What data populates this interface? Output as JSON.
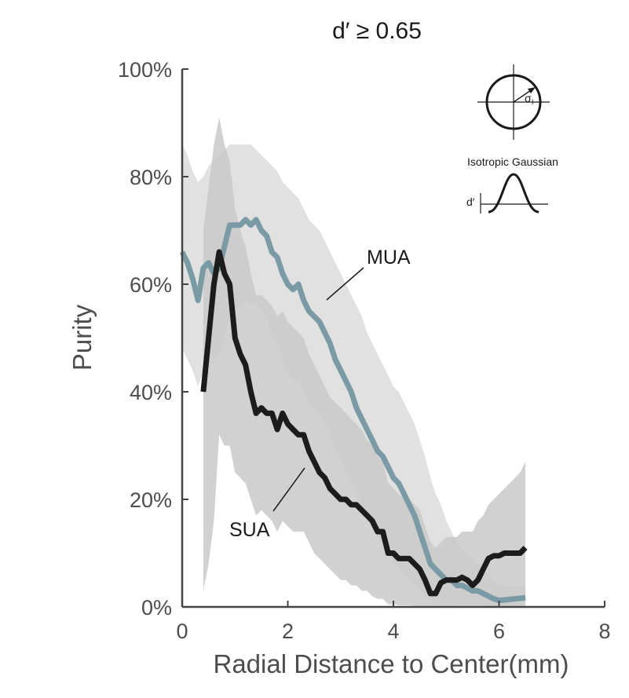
{
  "chart_data": {
    "type": "line",
    "title": "d′ ≥ 0.65",
    "xlabel": "Radial Distance to Center(mm)",
    "ylabel": "Purity",
    "xlim": [
      0,
      8
    ],
    "ylim": [
      0,
      100
    ],
    "x_ticks": [
      "0",
      "2",
      "4",
      "6",
      "8"
    ],
    "y_ticks": [
      "0%",
      "20%",
      "40%",
      "60%",
      "80%",
      "100%"
    ],
    "grid": false,
    "series": [
      {
        "name": "MUA",
        "color": "#7a9aa6",
        "band_color": "#e1e1e1",
        "x": [
          0,
          0.1,
          0.2,
          0.3,
          0.4,
          0.5,
          0.6,
          0.7,
          0.8,
          0.9,
          1.0,
          1.1,
          1.2,
          1.3,
          1.4,
          1.5,
          1.6,
          1.7,
          1.8,
          1.9,
          2.0,
          2.1,
          2.2,
          2.3,
          2.4,
          2.5,
          2.6,
          2.7,
          2.8,
          2.9,
          3.0,
          3.1,
          3.2,
          3.3,
          3.4,
          3.5,
          3.6,
          3.7,
          3.8,
          3.9,
          4.0,
          4.1,
          4.2,
          4.3,
          4.4,
          4.5,
          4.6,
          4.7,
          4.8,
          4.9,
          5.0,
          5.1,
          5.2,
          5.3,
          5.4,
          5.5,
          5.6,
          5.7,
          5.8,
          5.9,
          6.0,
          6.1,
          6.2,
          6.3,
          6.4,
          6.5
        ],
        "values": [
          66,
          64,
          61,
          57,
          63,
          64,
          62,
          63,
          67,
          71,
          71,
          71,
          72,
          71,
          72,
          70,
          69,
          66,
          65,
          62,
          60,
          59,
          60,
          57,
          55,
          54,
          53,
          51,
          49,
          46,
          44,
          42,
          40,
          37,
          35,
          33,
          31,
          29,
          28,
          26,
          24,
          23,
          21,
          19,
          17,
          14,
          11,
          8,
          7,
          6,
          5,
          5,
          4,
          4,
          3.5,
          3,
          3,
          2.5,
          2,
          1.5,
          1.2,
          1.3,
          1.4,
          1.5,
          1.6,
          1.7
        ],
        "upper": [
          86,
          84,
          81,
          79,
          80,
          82,
          83,
          84,
          85,
          86,
          86,
          86,
          86,
          86,
          85,
          84,
          83,
          82,
          81,
          79,
          78,
          77,
          76,
          74,
          72,
          71,
          70,
          68,
          66,
          64,
          62,
          60,
          58,
          56,
          54,
          51,
          49,
          47,
          45,
          43,
          41,
          40,
          38,
          36,
          34,
          31,
          28,
          24,
          21,
          19,
          16,
          14,
          12,
          11,
          10,
          9,
          8,
          7,
          6,
          5,
          4,
          4,
          4,
          4,
          4,
          4
        ],
        "lower": [
          48,
          46,
          44,
          41,
          44,
          46,
          46,
          47,
          50,
          54,
          55,
          56,
          57,
          56,
          57,
          55,
          54,
          51,
          49,
          46,
          44,
          42,
          42,
          40,
          38,
          37,
          36,
          34,
          32,
          29,
          27,
          25,
          23,
          21,
          19,
          17,
          15,
          13,
          12,
          10,
          8,
          7,
          6,
          5,
          4,
          3,
          2,
          1,
          1,
          0.5,
          0.5,
          0.5,
          0.5,
          0.3,
          0.3,
          0.3,
          0.3,
          0.2,
          0.2,
          0.2,
          0.2,
          0.2,
          0.2,
          0.2,
          0.2,
          0.2
        ]
      },
      {
        "name": "SUA",
        "color": "#1c1c1c",
        "band_color": "#c9c9c9",
        "x": [
          0.4,
          0.5,
          0.6,
          0.7,
          0.8,
          0.9,
          1.0,
          1.1,
          1.2,
          1.3,
          1.4,
          1.5,
          1.6,
          1.7,
          1.8,
          1.9,
          2.0,
          2.1,
          2.2,
          2.3,
          2.4,
          2.5,
          2.6,
          2.7,
          2.8,
          2.9,
          3.0,
          3.1,
          3.2,
          3.3,
          3.4,
          3.5,
          3.6,
          3.7,
          3.8,
          3.9,
          4.0,
          4.1,
          4.2,
          4.3,
          4.4,
          4.5,
          4.6,
          4.7,
          4.8,
          4.9,
          5.0,
          5.1,
          5.2,
          5.3,
          5.4,
          5.5,
          5.6,
          5.7,
          5.8,
          5.9,
          6.0,
          6.1,
          6.2,
          6.3,
          6.4,
          6.5
        ],
        "values": [
          40,
          50,
          60,
          66,
          62,
          60,
          50,
          47,
          45,
          40,
          36,
          37,
          36,
          36,
          33,
          36,
          34,
          33,
          32,
          32,
          29,
          27,
          25,
          24,
          22,
          21,
          20,
          20,
          19,
          19,
          18,
          17,
          16,
          14,
          14,
          10,
          10,
          9,
          9,
          9,
          8,
          7,
          5,
          2.5,
          2.5,
          4.5,
          5,
          5,
          5,
          5.5,
          5,
          4,
          5,
          7,
          9,
          9.5,
          9.5,
          10,
          10,
          10,
          10,
          11
        ],
        "upper": [
          70,
          78,
          86,
          91,
          86,
          83,
          74,
          70,
          67,
          62,
          58,
          58,
          57,
          56,
          54,
          55,
          53,
          52,
          51,
          50,
          47,
          45,
          43,
          41,
          39,
          38,
          37,
          36,
          35,
          34,
          33,
          31,
          30,
          28,
          27,
          23,
          22,
          21,
          20,
          20,
          19,
          18,
          15,
          12,
          11,
          12,
          13,
          13,
          13,
          14,
          14,
          14,
          16,
          17,
          19,
          20,
          21,
          22,
          23,
          24,
          25,
          27
        ],
        "lower": [
          3,
          8,
          16,
          32,
          30,
          30,
          25,
          24,
          23,
          20,
          17,
          18,
          17,
          16,
          14,
          16,
          15,
          14,
          14,
          14,
          12,
          10,
          9,
          8,
          7,
          6,
          5,
          5,
          4,
          4,
          3,
          3,
          2,
          1.5,
          1.5,
          0.5,
          0.5,
          0.3,
          0.3,
          0.3,
          0.2,
          0.2,
          0.2,
          0.2,
          0.2,
          0.2,
          0.2,
          0.2,
          0.2,
          0.2,
          0.2,
          0.2,
          0.2,
          0.2,
          0.2,
          0.2,
          0.2,
          0.2,
          0.2,
          0.2,
          0.2,
          0.2
        ]
      }
    ],
    "inset": {
      "sigma_label": "σ",
      "sigma_subscript": "I",
      "caption": "Isotropic Gaussian",
      "dprime_label": "d′"
    }
  }
}
